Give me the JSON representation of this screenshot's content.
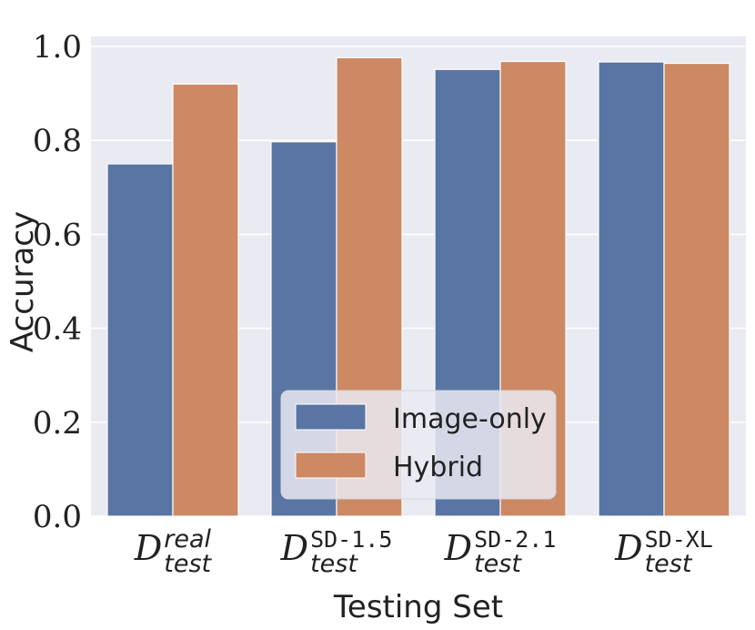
{
  "chart_data": {
    "type": "bar",
    "categories": [
      {
        "main": "D",
        "sup": "real",
        "sub": "test",
        "sup_style": "italic"
      },
      {
        "main": "D",
        "sup": "SD-1.5",
        "sub": "test",
        "sup_style": "mono"
      },
      {
        "main": "D",
        "sup": "SD-2.1",
        "sub": "test",
        "sup_style": "mono"
      },
      {
        "main": "D",
        "sup": "SD-XL",
        "sub": "test",
        "sup_style": "mono"
      }
    ],
    "series": [
      {
        "name": "Image-only",
        "color": "#5875a4",
        "values": [
          0.75,
          0.797,
          0.951,
          0.967
        ]
      },
      {
        "name": "Hybrid",
        "color": "#cc8963",
        "values": [
          0.92,
          0.976,
          0.968,
          0.964
        ]
      }
    ],
    "xlabel": "Testing Set",
    "ylabel": "Accuracy",
    "ylim": [
      0.0,
      1.0
    ],
    "yticks": [
      "0.0",
      "0.2",
      "0.4",
      "0.6",
      "0.8",
      "1.0"
    ],
    "grid": true,
    "background": "#eaeaf2",
    "legend_position": "bottom-center"
  }
}
